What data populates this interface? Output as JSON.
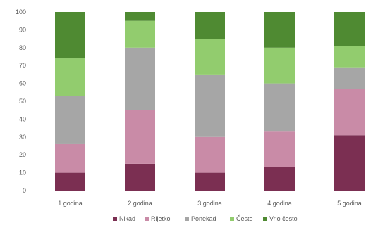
{
  "chart_data": {
    "type": "bar",
    "stacked": true,
    "categories": [
      "1.godina",
      "2.godina",
      "3.godina",
      "4.godina",
      "5.godina"
    ],
    "series": [
      {
        "name": "Nikad",
        "color": "#7b2f52",
        "values": [
          10,
          15,
          10,
          13,
          31
        ]
      },
      {
        "name": "Rijetko",
        "color": "#c98ba7",
        "values": [
          16,
          30,
          20,
          20,
          26
        ]
      },
      {
        "name": "Ponekad",
        "color": "#a6a6a6",
        "values": [
          27,
          35,
          35,
          27,
          12
        ]
      },
      {
        "name": "Često",
        "color": "#92cc6e",
        "values": [
          21,
          15,
          20,
          20,
          12
        ]
      },
      {
        "name": "Vrlo često",
        "color": "#4f8a32",
        "values": [
          26,
          5,
          15,
          20,
          19
        ]
      }
    ],
    "yticks": [
      "0",
      "10",
      "20",
      "30",
      "40",
      "50",
      "60",
      "70",
      "80",
      "90",
      "100"
    ],
    "ylim": [
      0,
      100
    ],
    "grid": false,
    "legend_position": "bottom",
    "title": "",
    "xlabel": "",
    "ylabel": ""
  }
}
